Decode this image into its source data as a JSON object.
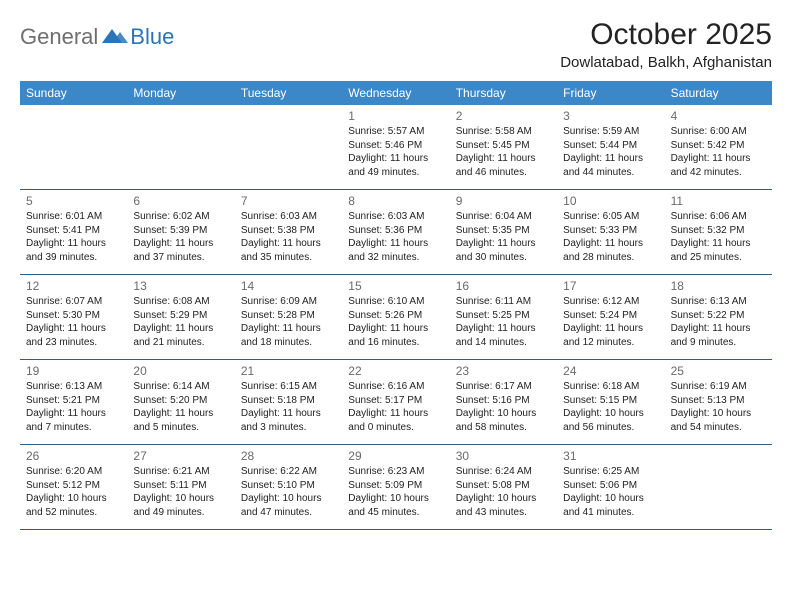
{
  "logo": {
    "text1": "General",
    "text2": "Blue",
    "mark_color": "#2b74b8"
  },
  "title": "October 2025",
  "location": "Dowlatabad, Balkh, Afghanistan",
  "colors": {
    "header_bg": "#3b87c8",
    "header_text": "#ffffff",
    "rule": "#2f5d86",
    "daynum": "#6a6a6a",
    "body_text": "#222222",
    "page_bg": "#ffffff"
  },
  "weekdays": [
    "Sunday",
    "Monday",
    "Tuesday",
    "Wednesday",
    "Thursday",
    "Friday",
    "Saturday"
  ],
  "first_day_index": 3,
  "days": [
    {
      "n": 1,
      "sunrise": "5:57 AM",
      "sunset": "5:46 PM",
      "daylight": "11 hours and 49 minutes."
    },
    {
      "n": 2,
      "sunrise": "5:58 AM",
      "sunset": "5:45 PM",
      "daylight": "11 hours and 46 minutes."
    },
    {
      "n": 3,
      "sunrise": "5:59 AM",
      "sunset": "5:44 PM",
      "daylight": "11 hours and 44 minutes."
    },
    {
      "n": 4,
      "sunrise": "6:00 AM",
      "sunset": "5:42 PM",
      "daylight": "11 hours and 42 minutes."
    },
    {
      "n": 5,
      "sunrise": "6:01 AM",
      "sunset": "5:41 PM",
      "daylight": "11 hours and 39 minutes."
    },
    {
      "n": 6,
      "sunrise": "6:02 AM",
      "sunset": "5:39 PM",
      "daylight": "11 hours and 37 minutes."
    },
    {
      "n": 7,
      "sunrise": "6:03 AM",
      "sunset": "5:38 PM",
      "daylight": "11 hours and 35 minutes."
    },
    {
      "n": 8,
      "sunrise": "6:03 AM",
      "sunset": "5:36 PM",
      "daylight": "11 hours and 32 minutes."
    },
    {
      "n": 9,
      "sunrise": "6:04 AM",
      "sunset": "5:35 PM",
      "daylight": "11 hours and 30 minutes."
    },
    {
      "n": 10,
      "sunrise": "6:05 AM",
      "sunset": "5:33 PM",
      "daylight": "11 hours and 28 minutes."
    },
    {
      "n": 11,
      "sunrise": "6:06 AM",
      "sunset": "5:32 PM",
      "daylight": "11 hours and 25 minutes."
    },
    {
      "n": 12,
      "sunrise": "6:07 AM",
      "sunset": "5:30 PM",
      "daylight": "11 hours and 23 minutes."
    },
    {
      "n": 13,
      "sunrise": "6:08 AM",
      "sunset": "5:29 PM",
      "daylight": "11 hours and 21 minutes."
    },
    {
      "n": 14,
      "sunrise": "6:09 AM",
      "sunset": "5:28 PM",
      "daylight": "11 hours and 18 minutes."
    },
    {
      "n": 15,
      "sunrise": "6:10 AM",
      "sunset": "5:26 PM",
      "daylight": "11 hours and 16 minutes."
    },
    {
      "n": 16,
      "sunrise": "6:11 AM",
      "sunset": "5:25 PM",
      "daylight": "11 hours and 14 minutes."
    },
    {
      "n": 17,
      "sunrise": "6:12 AM",
      "sunset": "5:24 PM",
      "daylight": "11 hours and 12 minutes."
    },
    {
      "n": 18,
      "sunrise": "6:13 AM",
      "sunset": "5:22 PM",
      "daylight": "11 hours and 9 minutes."
    },
    {
      "n": 19,
      "sunrise": "6:13 AM",
      "sunset": "5:21 PM",
      "daylight": "11 hours and 7 minutes."
    },
    {
      "n": 20,
      "sunrise": "6:14 AM",
      "sunset": "5:20 PM",
      "daylight": "11 hours and 5 minutes."
    },
    {
      "n": 21,
      "sunrise": "6:15 AM",
      "sunset": "5:18 PM",
      "daylight": "11 hours and 3 minutes."
    },
    {
      "n": 22,
      "sunrise": "6:16 AM",
      "sunset": "5:17 PM",
      "daylight": "11 hours and 0 minutes."
    },
    {
      "n": 23,
      "sunrise": "6:17 AM",
      "sunset": "5:16 PM",
      "daylight": "10 hours and 58 minutes."
    },
    {
      "n": 24,
      "sunrise": "6:18 AM",
      "sunset": "5:15 PM",
      "daylight": "10 hours and 56 minutes."
    },
    {
      "n": 25,
      "sunrise": "6:19 AM",
      "sunset": "5:13 PM",
      "daylight": "10 hours and 54 minutes."
    },
    {
      "n": 26,
      "sunrise": "6:20 AM",
      "sunset": "5:12 PM",
      "daylight": "10 hours and 52 minutes."
    },
    {
      "n": 27,
      "sunrise": "6:21 AM",
      "sunset": "5:11 PM",
      "daylight": "10 hours and 49 minutes."
    },
    {
      "n": 28,
      "sunrise": "6:22 AM",
      "sunset": "5:10 PM",
      "daylight": "10 hours and 47 minutes."
    },
    {
      "n": 29,
      "sunrise": "6:23 AM",
      "sunset": "5:09 PM",
      "daylight": "10 hours and 45 minutes."
    },
    {
      "n": 30,
      "sunrise": "6:24 AM",
      "sunset": "5:08 PM",
      "daylight": "10 hours and 43 minutes."
    },
    {
      "n": 31,
      "sunrise": "6:25 AM",
      "sunset": "5:06 PM",
      "daylight": "10 hours and 41 minutes."
    }
  ],
  "labels": {
    "sunrise": "Sunrise:",
    "sunset": "Sunset:",
    "daylight": "Daylight:"
  }
}
